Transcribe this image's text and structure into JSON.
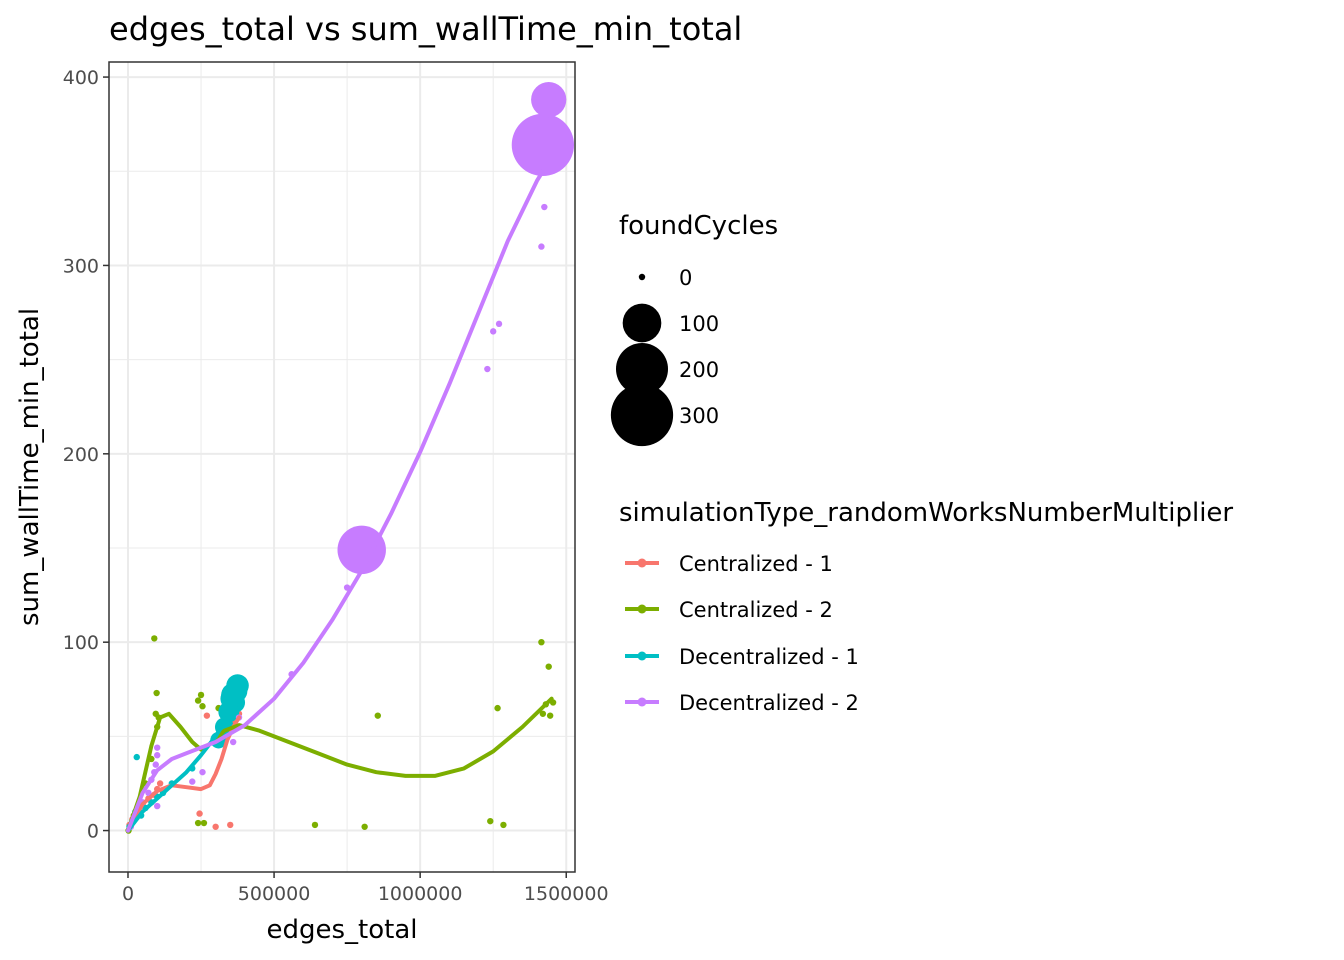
{
  "chart_data": {
    "type": "scatter",
    "title": "edges_total  vs  sum_wallTime_min_total",
    "xlabel": "edges_total",
    "ylabel": "sum_wallTime_min_total",
    "xlim": [
      -65000,
      1530000
    ],
    "ylim": [
      -22,
      408
    ],
    "x_ticks": [
      0,
      500000,
      1000000,
      1500000
    ],
    "x_tick_labels": [
      "0",
      "500000",
      "1000000",
      "1500000"
    ],
    "y_ticks": [
      0,
      100,
      200,
      300,
      400
    ],
    "y_tick_labels": [
      "0",
      "100",
      "200",
      "300",
      "400"
    ],
    "grid": true,
    "legend_placement": "right",
    "size_legend": {
      "title": "foundCycles",
      "entries": [
        {
          "label": "0",
          "value": 0
        },
        {
          "label": "100",
          "value": 100
        },
        {
          "label": "200",
          "value": 200
        },
        {
          "label": "300",
          "value": 300
        }
      ]
    },
    "color_legend": {
      "title": "simulationType_randomWorksNumberMultiplier"
    },
    "series": [
      {
        "name": "Centralized - 1",
        "color": "#F8766D",
        "points": [
          [
            5000,
            3,
            0
          ],
          [
            15000,
            6,
            0
          ],
          [
            30000,
            10,
            0
          ],
          [
            50000,
            14,
            0
          ],
          [
            70000,
            17,
            0
          ],
          [
            90000,
            19,
            0
          ],
          [
            100000,
            22,
            0
          ],
          [
            110000,
            25,
            0
          ],
          [
            120000,
            21,
            0
          ],
          [
            245000,
            9,
            0
          ],
          [
            270000,
            61,
            0
          ],
          [
            300000,
            2,
            0
          ],
          [
            350000,
            3,
            0
          ],
          [
            360000,
            57,
            0
          ],
          [
            380000,
            62,
            0
          ]
        ],
        "smooth": [
          [
            0,
            0
          ],
          [
            50000,
            14
          ],
          [
            100000,
            21
          ],
          [
            150000,
            24
          ],
          [
            200000,
            23
          ],
          [
            250000,
            22
          ],
          [
            280000,
            24
          ],
          [
            300000,
            30
          ],
          [
            320000,
            38
          ],
          [
            340000,
            48
          ],
          [
            360000,
            55
          ],
          [
            380000,
            60
          ]
        ]
      },
      {
        "name": "Centralized - 2",
        "color": "#7CAE00",
        "points": [
          [
            2000,
            0,
            0
          ],
          [
            20000,
            8,
            0
          ],
          [
            40000,
            15,
            0
          ],
          [
            60000,
            25,
            0
          ],
          [
            80000,
            38,
            0
          ],
          [
            90000,
            102,
            0
          ],
          [
            95000,
            62,
            0
          ],
          [
            98000,
            73,
            0
          ],
          [
            100000,
            55,
            0
          ],
          [
            105000,
            60,
            0
          ],
          [
            240000,
            69,
            0
          ],
          [
            250000,
            72,
            0
          ],
          [
            255000,
            66,
            0
          ],
          [
            240000,
            4,
            0
          ],
          [
            260000,
            4,
            0
          ],
          [
            310000,
            65,
            0
          ],
          [
            330000,
            62,
            0
          ],
          [
            640000,
            3,
            0
          ],
          [
            810000,
            2,
            0
          ],
          [
            855000,
            61,
            0
          ],
          [
            1240000,
            5,
            0
          ],
          [
            1265000,
            65,
            0
          ],
          [
            1285000,
            3,
            0
          ],
          [
            1415000,
            100,
            0
          ],
          [
            1420000,
            62,
            0
          ],
          [
            1430000,
            67,
            0
          ],
          [
            1440000,
            87,
            0
          ],
          [
            1445000,
            61,
            0
          ],
          [
            1455000,
            68,
            0
          ]
        ],
        "smooth": [
          [
            0,
            0
          ],
          [
            40000,
            18
          ],
          [
            80000,
            45
          ],
          [
            110000,
            60
          ],
          [
            140000,
            62
          ],
          [
            180000,
            55
          ],
          [
            220000,
            47
          ],
          [
            250000,
            43
          ],
          [
            290000,
            47
          ],
          [
            330000,
            53
          ],
          [
            380000,
            56
          ],
          [
            450000,
            53
          ],
          [
            550000,
            47
          ],
          [
            650000,
            41
          ],
          [
            750000,
            35
          ],
          [
            850000,
            31
          ],
          [
            950000,
            29
          ],
          [
            1050000,
            29
          ],
          [
            1150000,
            33
          ],
          [
            1250000,
            42
          ],
          [
            1350000,
            55
          ],
          [
            1450000,
            70
          ]
        ]
      },
      {
        "name": "Decentralized - 1",
        "color": "#00BFC4",
        "points": [
          [
            5000,
            2,
            0
          ],
          [
            15000,
            5,
            0
          ],
          [
            25000,
            10,
            0
          ],
          [
            30000,
            39,
            0
          ],
          [
            45000,
            8,
            0
          ],
          [
            60000,
            12,
            0
          ],
          [
            80000,
            15,
            0
          ],
          [
            100000,
            18,
            0
          ],
          [
            120000,
            20,
            0
          ],
          [
            150000,
            25,
            0
          ],
          [
            220000,
            33,
            0
          ],
          [
            310000,
            48,
            10
          ],
          [
            330000,
            55,
            15
          ],
          [
            345000,
            63,
            20
          ],
          [
            355000,
            70,
            25
          ],
          [
            360000,
            72,
            30
          ],
          [
            365000,
            68,
            20
          ],
          [
            370000,
            74,
            25
          ],
          [
            375000,
            77,
            25
          ]
        ],
        "smooth": [
          [
            0,
            0
          ],
          [
            50000,
            10
          ],
          [
            100000,
            17
          ],
          [
            150000,
            24
          ],
          [
            200000,
            31
          ],
          [
            250000,
            40
          ],
          [
            300000,
            50
          ],
          [
            340000,
            60
          ],
          [
            375000,
            68
          ]
        ]
      },
      {
        "name": "Decentralized - 2",
        "color": "#C77CFF",
        "points": [
          [
            10000,
            2,
            0
          ],
          [
            30000,
            7,
            0
          ],
          [
            50000,
            15,
            0
          ],
          [
            70000,
            20,
            0
          ],
          [
            80000,
            27,
            0
          ],
          [
            90000,
            31,
            0
          ],
          [
            95000,
            35,
            0
          ],
          [
            100000,
            40,
            0
          ],
          [
            100000,
            44,
            0
          ],
          [
            100000,
            13,
            0
          ],
          [
            220000,
            26,
            0
          ],
          [
            255000,
            31,
            0
          ],
          [
            360000,
            47,
            0
          ],
          [
            380000,
            60,
            0
          ],
          [
            560000,
            83,
            0
          ],
          [
            750000,
            129,
            0
          ],
          [
            800000,
            149,
            170
          ],
          [
            1230000,
            245,
            0
          ],
          [
            1250000,
            265,
            0
          ],
          [
            1270000,
            269,
            0
          ],
          [
            1415000,
            310,
            0
          ],
          [
            1420000,
            364,
            300
          ],
          [
            1425000,
            331,
            0
          ],
          [
            1435000,
            350,
            0
          ],
          [
            1440000,
            388,
            80
          ],
          [
            1455000,
            360,
            0
          ]
        ],
        "smooth": [
          [
            0,
            0
          ],
          [
            50000,
            20
          ],
          [
            100000,
            32
          ],
          [
            150000,
            38
          ],
          [
            200000,
            41
          ],
          [
            300000,
            47
          ],
          [
            400000,
            56
          ],
          [
            500000,
            70
          ],
          [
            600000,
            89
          ],
          [
            700000,
            112
          ],
          [
            800000,
            138
          ],
          [
            900000,
            168
          ],
          [
            1000000,
            201
          ],
          [
            1100000,
            237
          ],
          [
            1200000,
            275
          ],
          [
            1300000,
            313
          ],
          [
            1400000,
            345
          ],
          [
            1440000,
            355
          ]
        ]
      }
    ]
  }
}
